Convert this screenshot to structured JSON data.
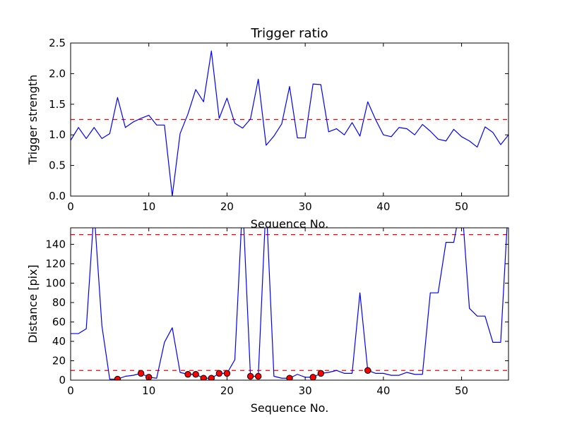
{
  "figure": {
    "background": "#ffffff"
  },
  "chart_data": [
    {
      "type": "line",
      "title": "Trigger ratio",
      "xlabel": "Sequence No.",
      "ylabel": "Trigger strength",
      "xlim": [
        0,
        56
      ],
      "ylim": [
        0,
        2.5
      ],
      "xticks": [
        0,
        10,
        20,
        30,
        40,
        50
      ],
      "yticks": [
        0.0,
        0.5,
        1.0,
        1.5,
        2.0,
        2.5
      ],
      "ytick_labels": [
        "0.0",
        "0.5",
        "1.0",
        "1.5",
        "2.0",
        "2.5"
      ],
      "grid": false,
      "series": [
        {
          "color": "#0000ff",
          "x": [
            0,
            1,
            2,
            3,
            4,
            5,
            6,
            7,
            8,
            9,
            10,
            11,
            12,
            13,
            14,
            15,
            16,
            17,
            18,
            19,
            20,
            21,
            22,
            23,
            24,
            25,
            26,
            27,
            28,
            29,
            30,
            31,
            32,
            33,
            34,
            35,
            36,
            37,
            38,
            39,
            40,
            41,
            42,
            43,
            44,
            45,
            46,
            47,
            48,
            49,
            50,
            51,
            52,
            53,
            54,
            55,
            56
          ],
          "values": [
            0.91,
            1.12,
            0.94,
            1.12,
            0.94,
            1.02,
            1.61,
            1.12,
            1.21,
            1.27,
            1.32,
            1.16,
            1.16,
            0.0,
            1.02,
            1.34,
            1.74,
            1.54,
            2.37,
            1.27,
            1.6,
            1.19,
            1.11,
            1.26,
            1.91,
            0.83,
            0.98,
            1.18,
            1.79,
            0.95,
            0.95,
            1.83,
            1.82,
            1.05,
            1.1,
            1.0,
            1.2,
            0.98,
            1.54,
            1.25,
            1.0,
            0.97,
            1.12,
            1.1,
            1.0,
            1.17,
            1.06,
            0.93,
            0.9,
            1.09,
            0.97,
            0.9,
            0.8,
            1.13,
            1.04,
            0.84,
            1.0
          ]
        }
      ],
      "hlines": [
        {
          "y": 1.25,
          "color": "#ff0000",
          "style": "dashed"
        }
      ]
    },
    {
      "type": "line",
      "title": "",
      "xlabel": "Sequence No.",
      "ylabel": "Distance [pix]",
      "xlim": [
        0,
        56
      ],
      "ylim": [
        0,
        157
      ],
      "xticks": [
        0,
        10,
        20,
        30,
        40,
        50
      ],
      "yticks": [
        0,
        20,
        40,
        60,
        80,
        100,
        120,
        140
      ],
      "ytick_labels": [
        "0",
        "20",
        "40",
        "60",
        "80",
        "100",
        "120",
        "140"
      ],
      "grid": false,
      "series": [
        {
          "color": "#0000ff",
          "x": [
            0,
            1,
            2,
            3,
            4,
            5,
            6,
            7,
            8,
            9,
            10,
            11,
            12,
            13,
            14,
            15,
            16,
            17,
            18,
            19,
            20,
            21,
            22,
            23,
            24,
            25,
            26,
            27,
            28,
            29,
            30,
            31,
            32,
            33,
            34,
            35,
            36,
            37,
            38,
            39,
            40,
            41,
            42,
            43,
            44,
            45,
            46,
            47,
            48,
            49,
            50,
            51,
            52,
            53,
            54,
            55,
            56
          ],
          "values": [
            48,
            48,
            53,
            175,
            56,
            1,
            1,
            4,
            5,
            7,
            3,
            2,
            39,
            54,
            8,
            6,
            6,
            2,
            2,
            7,
            7,
            21,
            185,
            4,
            4,
            185,
            4,
            2,
            2,
            6,
            3,
            3,
            7,
            8,
            10,
            7,
            7,
            90,
            10,
            7,
            7,
            5,
            5,
            8,
            6,
            6,
            90,
            90,
            142,
            142,
            185,
            74,
            66,
            66,
            39,
            39,
            185
          ]
        },
        {
          "color": "#ff0000",
          "marker": "circle",
          "markeredgecolor": "#000000",
          "x": [
            6,
            9,
            10,
            15,
            16,
            17,
            18,
            19,
            20,
            23,
            24,
            28,
            31,
            32,
            38
          ],
          "values": [
            1,
            7,
            3,
            6,
            6,
            2,
            2,
            7,
            7,
            4,
            4,
            2,
            3,
            7,
            10
          ]
        }
      ],
      "hlines": [
        {
          "y": 10,
          "color": "#ff0000",
          "style": "dashed"
        },
        {
          "y": 150,
          "color": "#ff0000",
          "style": "dashed"
        }
      ]
    }
  ]
}
